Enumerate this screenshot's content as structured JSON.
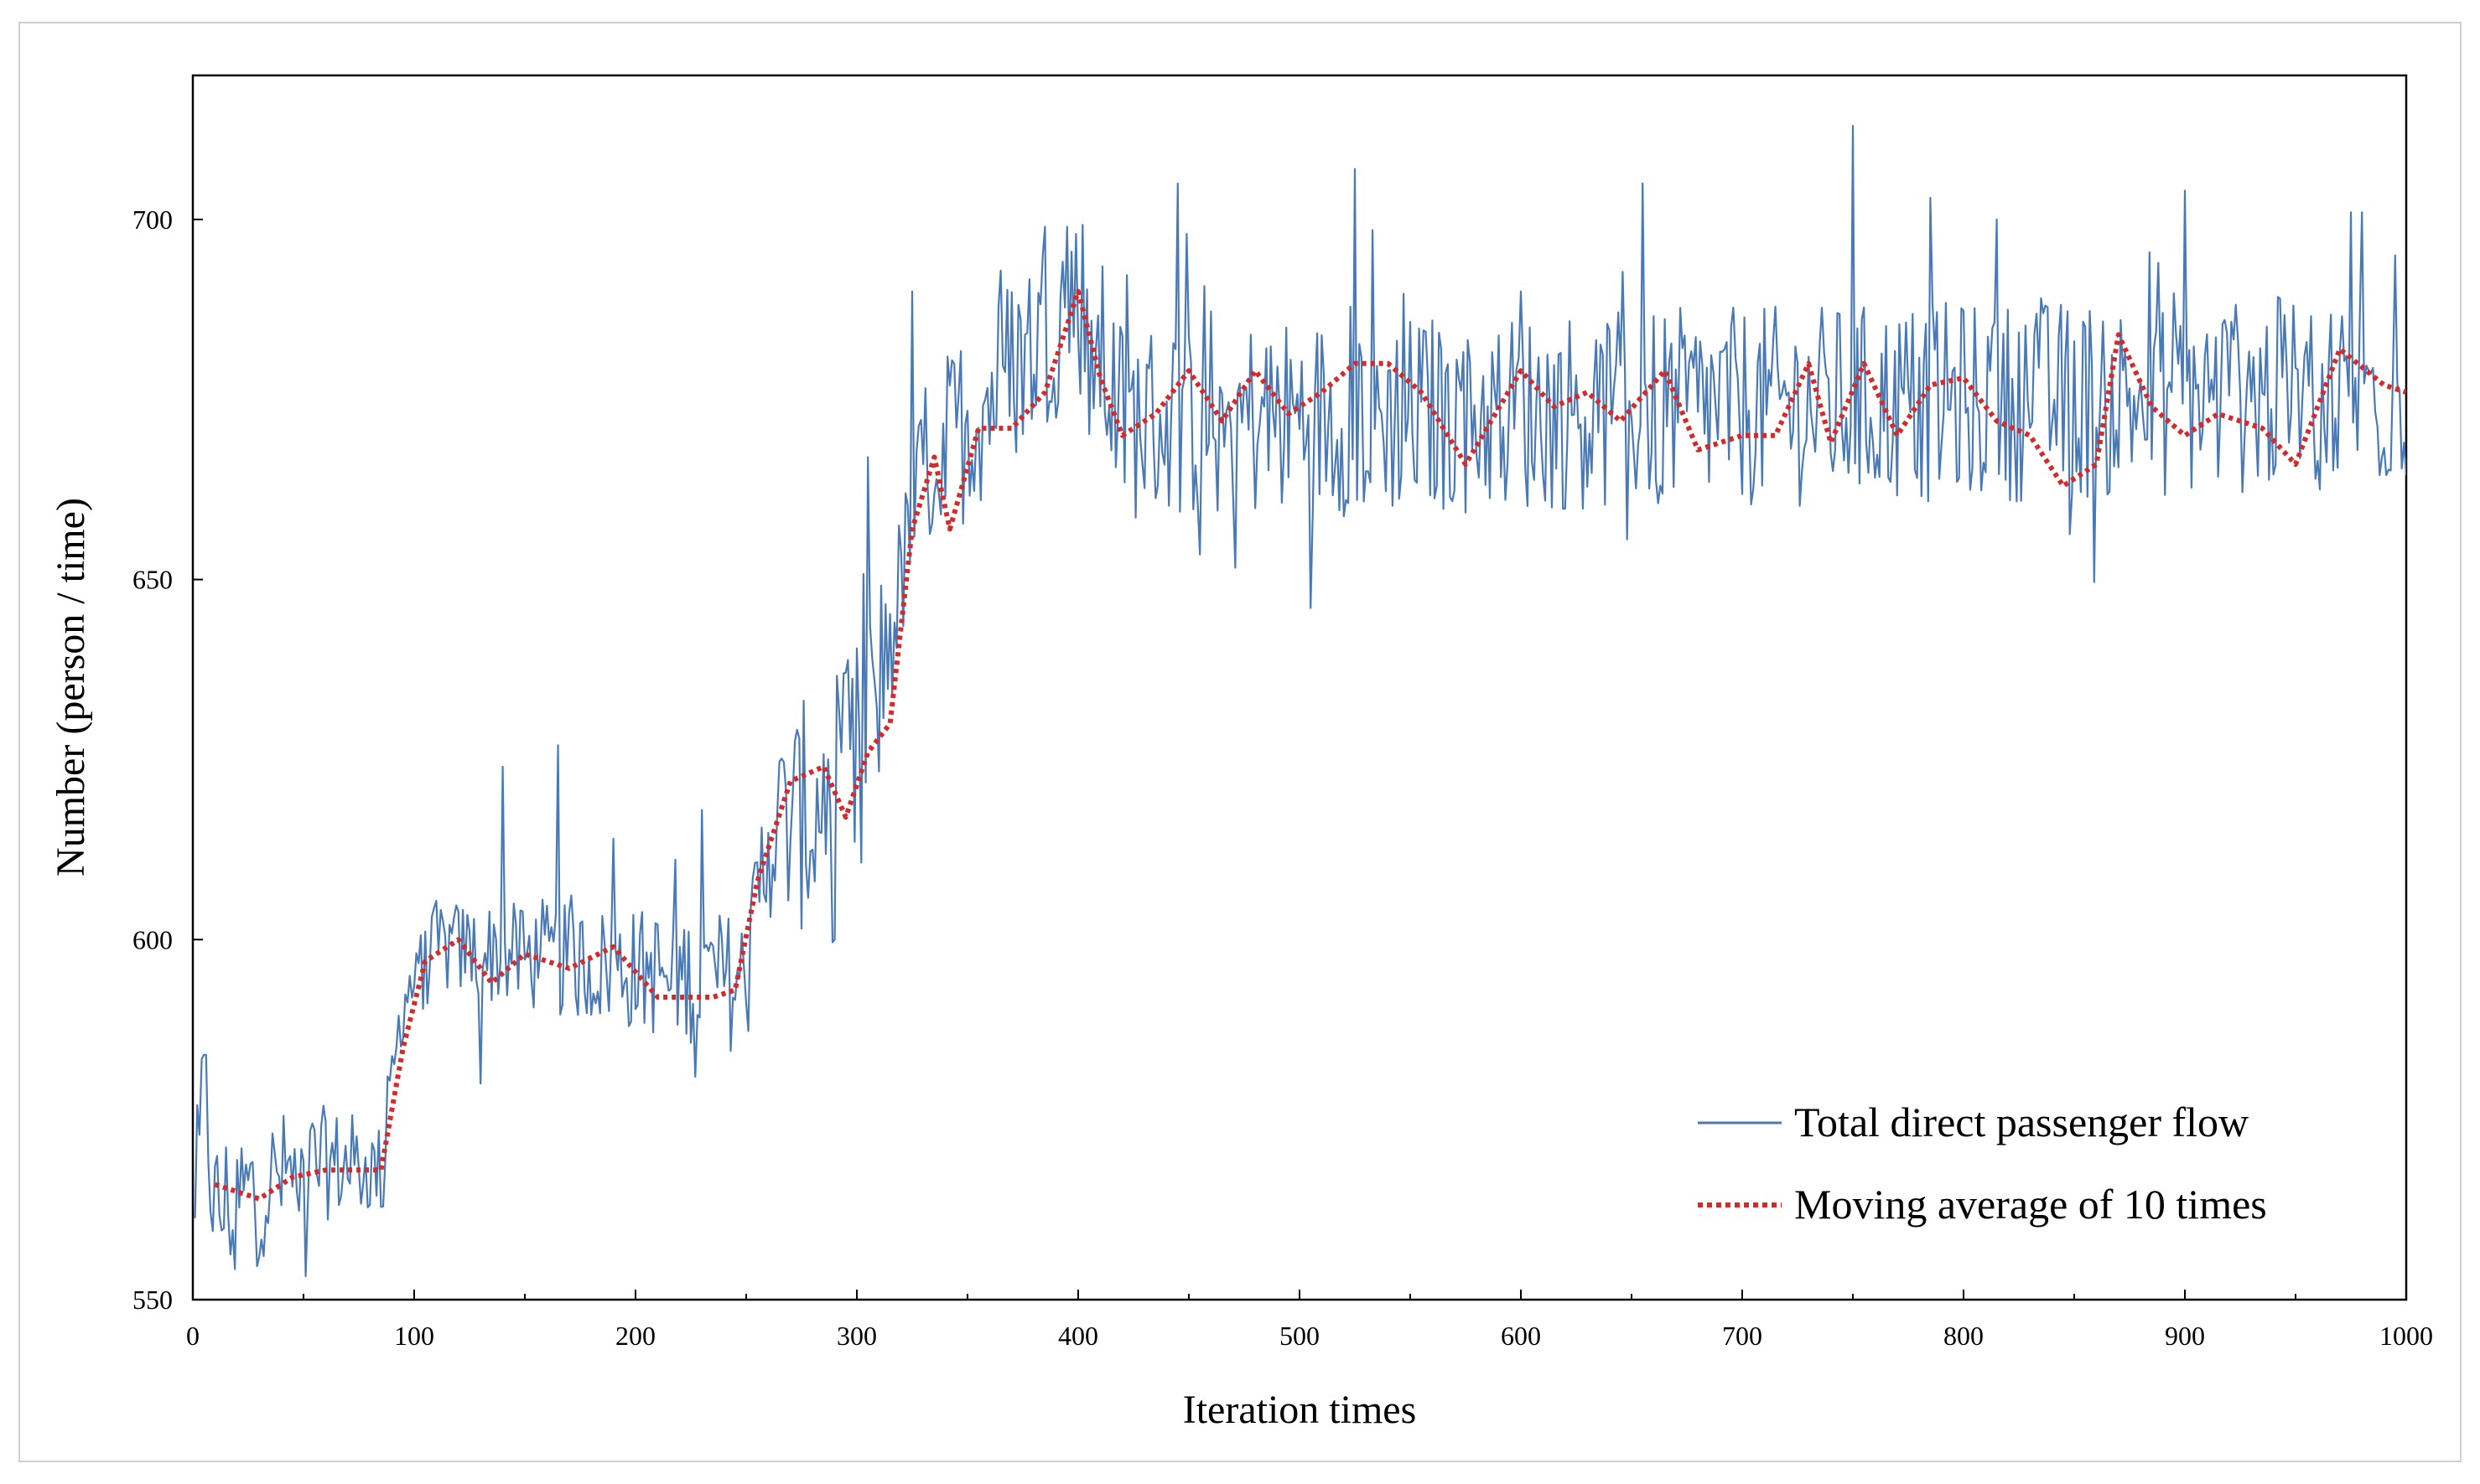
{
  "chart_data": {
    "type": "line",
    "title": "",
    "xlabel": "Iteration times",
    "ylabel": "Number (person / time)",
    "xlim": [
      0,
      1000
    ],
    "ylim": [
      550,
      720
    ],
    "x_ticks": [
      0,
      100,
      200,
      300,
      400,
      500,
      600,
      700,
      800,
      900,
      1000
    ],
    "y_ticks": [
      550,
      600,
      650,
      700
    ],
    "grid": false,
    "legend_position": "bottom-right",
    "series": [
      {
        "name": "Total direct passenger flow",
        "style": "solid",
        "color": "#4a7ab5",
        "keypoints": [
          [
            0,
            552
          ],
          [
            5,
            580
          ],
          [
            10,
            562
          ],
          [
            20,
            564
          ],
          [
            40,
            567
          ],
          [
            60,
            569
          ],
          [
            85,
            568
          ],
          [
            95,
            592
          ],
          [
            110,
            599
          ],
          [
            250,
            594
          ],
          [
            260,
            615
          ],
          [
            300,
            620
          ],
          [
            310,
            635
          ],
          [
            330,
            665
          ],
          [
            400,
            690
          ],
          [
            420,
            672
          ],
          [
            1000,
            676
          ]
        ],
        "noise_amplitude": [
          [
            0,
            12
          ],
          [
            90,
            6
          ],
          [
            250,
            10
          ],
          [
            300,
            22
          ],
          [
            320,
            10
          ],
          [
            350,
            14
          ],
          [
            1000,
            14
          ]
        ],
        "spikes": [
          [
            5,
            584
          ],
          [
            140,
            624
          ],
          [
            165,
            627
          ],
          [
            190,
            614
          ],
          [
            230,
            618
          ],
          [
            305,
            667
          ],
          [
            325,
            690
          ],
          [
            385,
            699
          ],
          [
            395,
            699
          ],
          [
            445,
            705
          ],
          [
            525,
            707
          ],
          [
            600,
            690
          ],
          [
            655,
            705
          ],
          [
            750,
            713
          ],
          [
            785,
            703
          ],
          [
            815,
            700
          ],
          [
            900,
            704
          ],
          [
            975,
            701
          ],
          [
            980,
            701
          ],
          [
            995,
            695
          ],
          [
            290,
            600
          ],
          [
            130,
            580
          ]
        ]
      },
      {
        "name": "Moving average of 10 times",
        "style": "dotted",
        "color": "#d42a2a",
        "points": [
          [
            10,
            566
          ],
          [
            30,
            564
          ],
          [
            45,
            567
          ],
          [
            60,
            568
          ],
          [
            85,
            568
          ],
          [
            95,
            585
          ],
          [
            105,
            597
          ],
          [
            120,
            600
          ],
          [
            135,
            594
          ],
          [
            150,
            598
          ],
          [
            170,
            596
          ],
          [
            190,
            599
          ],
          [
            210,
            592
          ],
          [
            235,
            592
          ],
          [
            245,
            593
          ],
          [
            255,
            608
          ],
          [
            270,
            622
          ],
          [
            285,
            624
          ],
          [
            295,
            617
          ],
          [
            305,
            626
          ],
          [
            315,
            630
          ],
          [
            325,
            657
          ],
          [
            335,
            667
          ],
          [
            342,
            657
          ],
          [
            355,
            671
          ],
          [
            370,
            671
          ],
          [
            385,
            676
          ],
          [
            400,
            690
          ],
          [
            410,
            678
          ],
          [
            420,
            670
          ],
          [
            435,
            673
          ],
          [
            450,
            679
          ],
          [
            465,
            672
          ],
          [
            480,
            679
          ],
          [
            495,
            673
          ],
          [
            510,
            676
          ],
          [
            525,
            680
          ],
          [
            540,
            680
          ],
          [
            555,
            676
          ],
          [
            575,
            666
          ],
          [
            600,
            679
          ],
          [
            615,
            674
          ],
          [
            630,
            676
          ],
          [
            645,
            672
          ],
          [
            665,
            679
          ],
          [
            680,
            668
          ],
          [
            700,
            670
          ],
          [
            715,
            670
          ],
          [
            730,
            680
          ],
          [
            740,
            669
          ],
          [
            755,
            680
          ],
          [
            770,
            670
          ],
          [
            785,
            677
          ],
          [
            800,
            678
          ],
          [
            815,
            672
          ],
          [
            830,
            670
          ],
          [
            845,
            663
          ],
          [
            860,
            666
          ],
          [
            870,
            684
          ],
          [
            885,
            674
          ],
          [
            900,
            670
          ],
          [
            915,
            673
          ],
          [
            935,
            671
          ],
          [
            950,
            666
          ],
          [
            970,
            682
          ],
          [
            990,
            677
          ],
          [
            1000,
            676
          ]
        ]
      }
    ]
  }
}
